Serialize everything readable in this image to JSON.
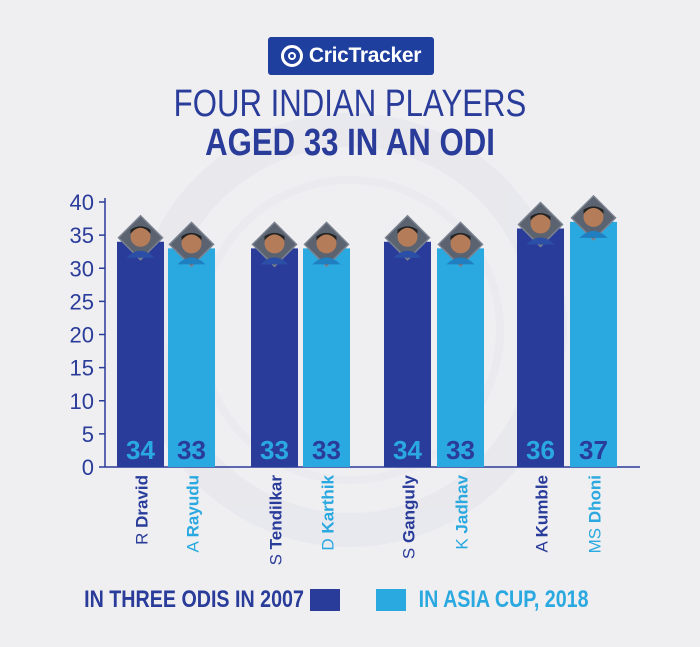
{
  "brand": "CricTracker",
  "title_line1": "FOUR INDIAN PLAYERS",
  "title_line2": "AGED 33 IN AN ODI",
  "chart_data": {
    "type": "bar",
    "ylim": [
      0,
      40
    ],
    "yticks": [
      0,
      5,
      10,
      15,
      20,
      25,
      30,
      35,
      40
    ],
    "series": [
      {
        "name": "IN THREE ODIS IN 2007",
        "color": "#2a3c9a"
      },
      {
        "name": "IN ASIA CUP, 2018",
        "color": "#2aa8e0"
      }
    ],
    "bars": [
      {
        "first": "R",
        "last": "Dravid",
        "value": 34,
        "series": 0
      },
      {
        "first": "A",
        "last": "Rayudu",
        "value": 33,
        "series": 1
      },
      {
        "first": "S",
        "last": "Tendilkar",
        "value": 33,
        "series": 0
      },
      {
        "first": "D",
        "last": "Karthik",
        "value": 33,
        "series": 1
      },
      {
        "first": "S",
        "last": "Ganguly",
        "value": 34,
        "series": 0
      },
      {
        "first": "K",
        "last": "Jadhav",
        "value": 33,
        "series": 1
      },
      {
        "first": "A",
        "last": "Kumble",
        "value": 36,
        "series": 0
      },
      {
        "first": "MS",
        "last": "Dhoni",
        "value": 37,
        "series": 1
      }
    ]
  },
  "legend": {
    "dark_label": "IN THREE ODIS IN 2007",
    "light_label": "IN ASIA CUP, 2018"
  },
  "colors": {
    "dark": "#2a3c9a",
    "light": "#2aa8e0",
    "brand": "#1f3f9e"
  }
}
